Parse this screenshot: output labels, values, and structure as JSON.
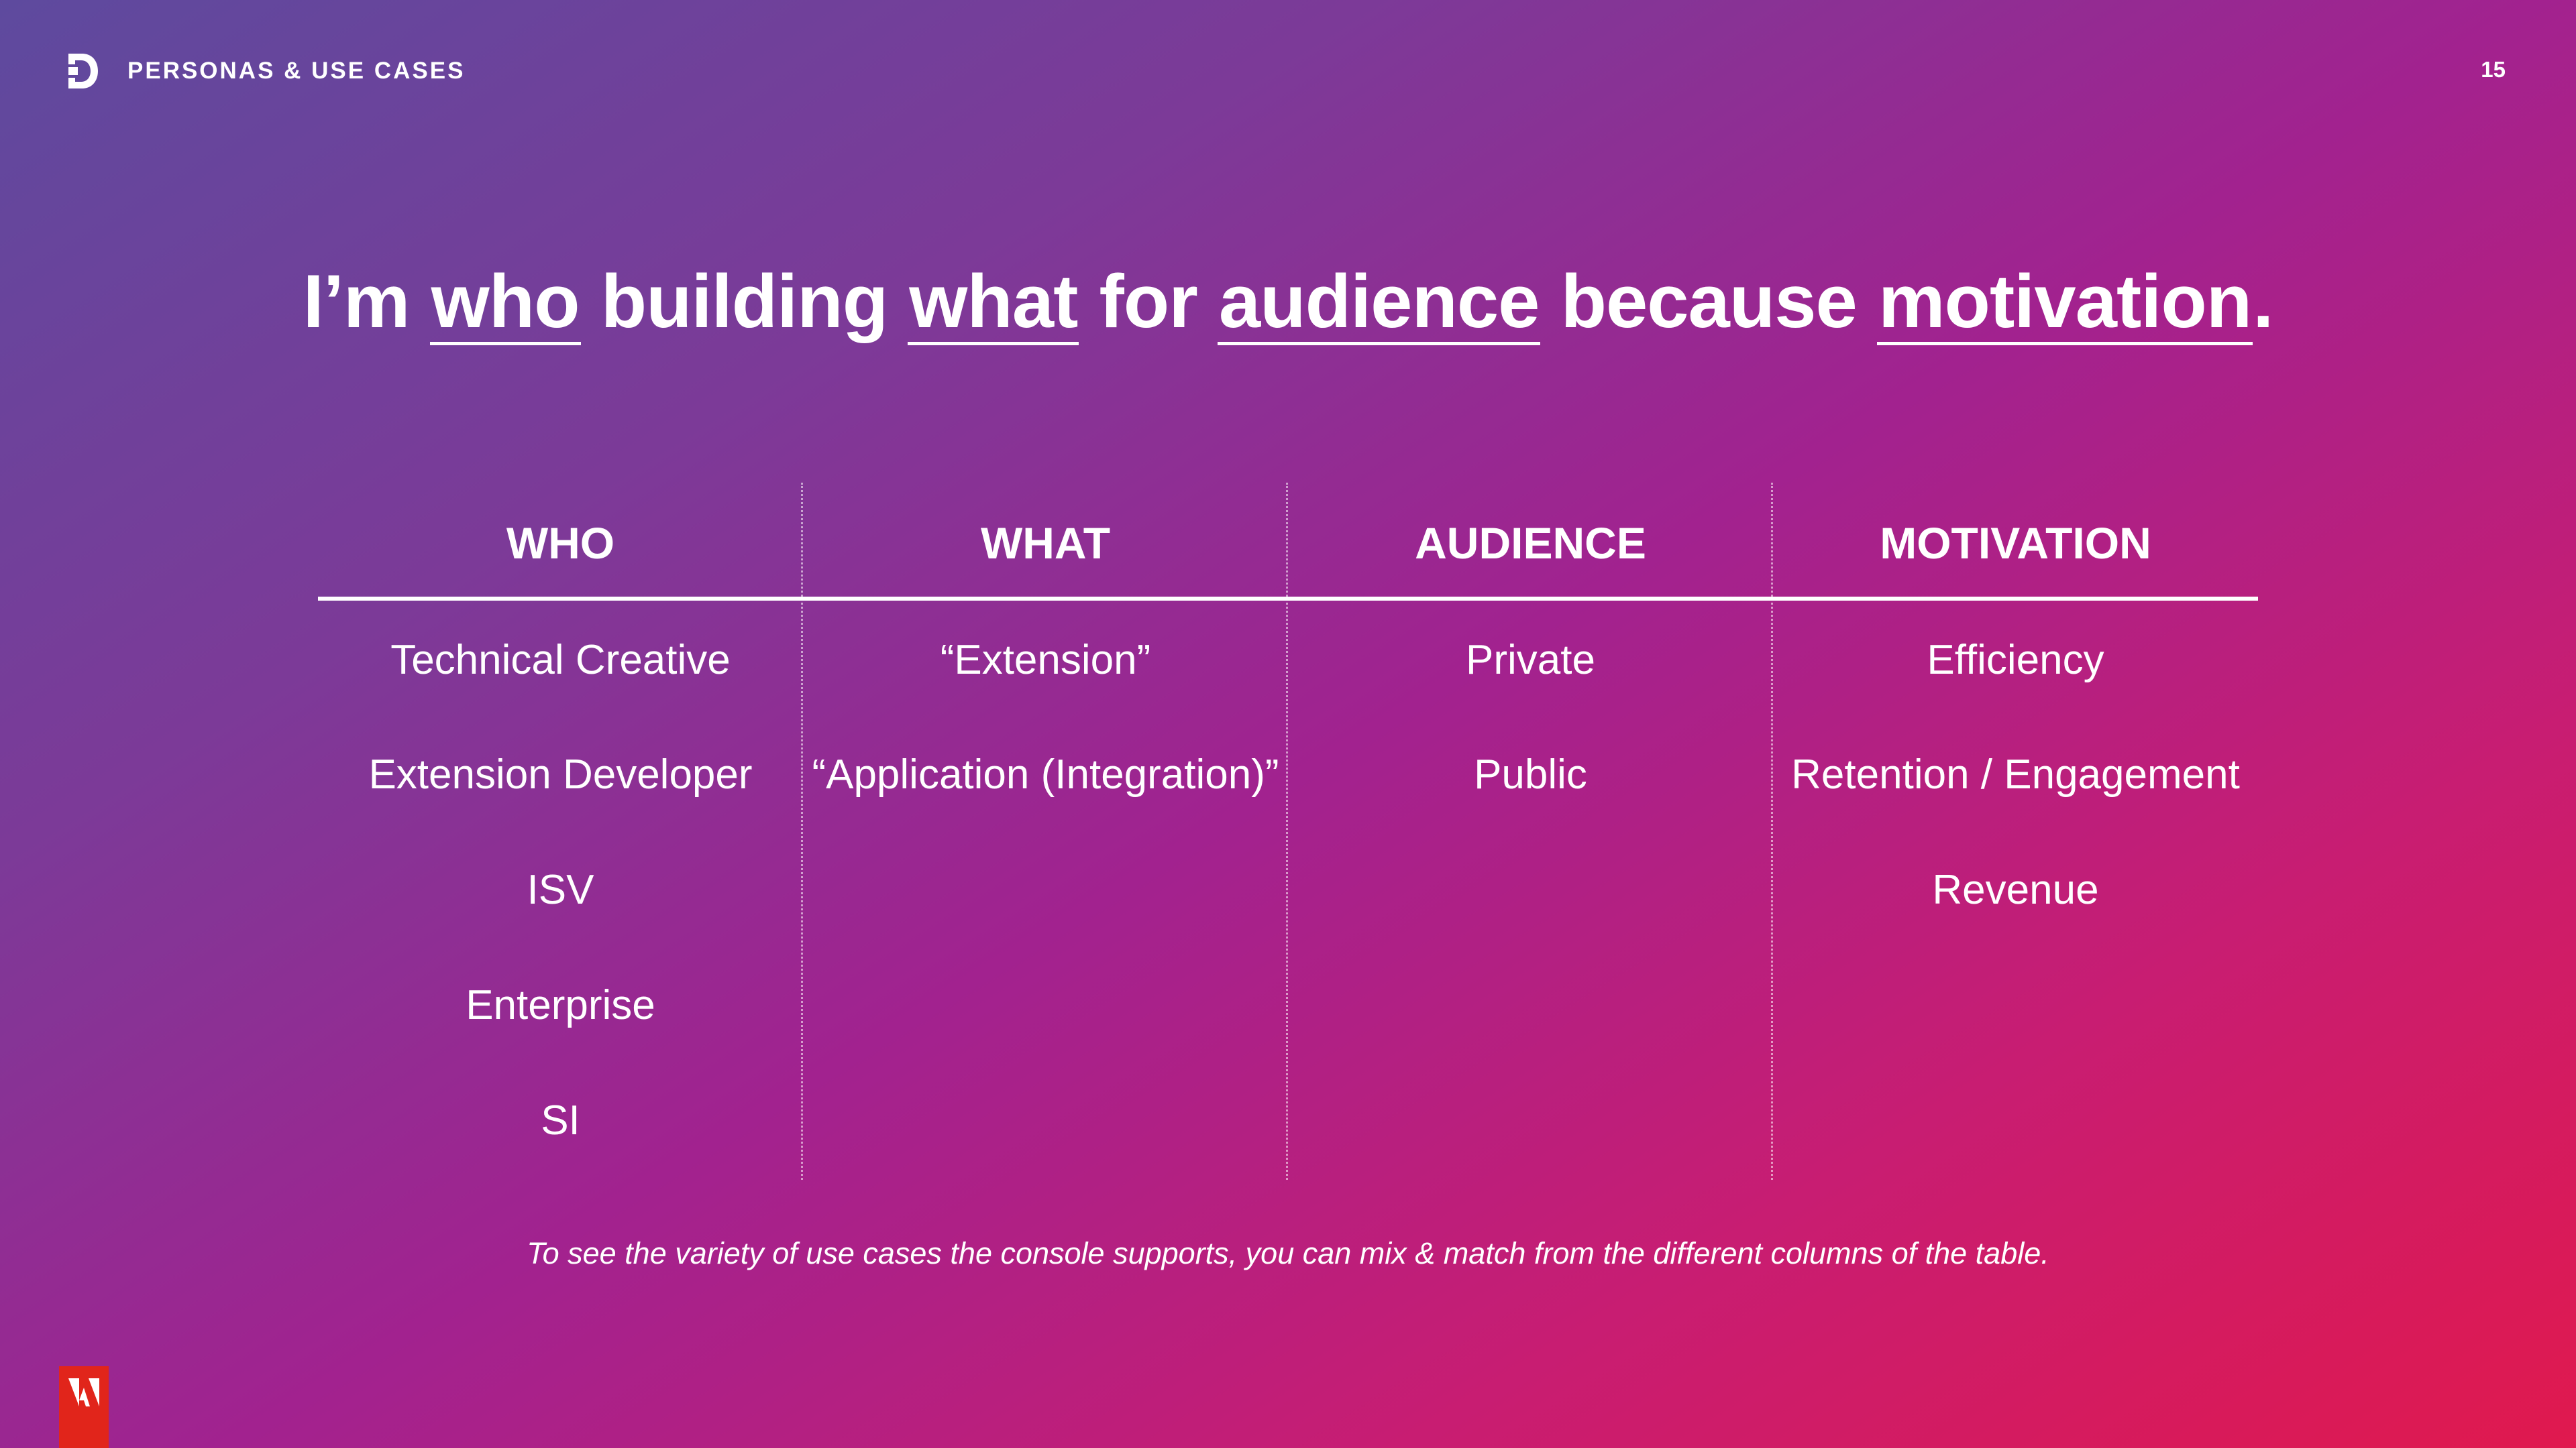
{
  "header": {
    "section_label": "PERSONAS & USE CASES",
    "page_number": "15",
    "brand_icon": "d-logo-icon"
  },
  "headline": {
    "w1": "I’m",
    "who": "who",
    "w2": "building",
    "what": "what",
    "w3": "for",
    "audience": "audience",
    "w4": "because",
    "motivation": "motivation",
    "end": "."
  },
  "table": {
    "columns": [
      {
        "header": "WHO",
        "items": [
          "Technical Creative",
          "Extension Developer",
          "ISV",
          "Enterprise",
          "SI"
        ]
      },
      {
        "header": "WHAT",
        "items": [
          "“Extension”",
          "“Application (Integration)”"
        ]
      },
      {
        "header": "AUDIENCE",
        "items": [
          "Private",
          "Public"
        ]
      },
      {
        "header": "MOTIVATION",
        "items": [
          "Efficiency",
          "Retention / Engagement",
          "Revenue"
        ]
      }
    ]
  },
  "footnote": "To see the variety of use cases the console supports, you can mix & match from the different columns of the table.",
  "footer": {
    "logo_icon": "adobe-logo-icon"
  },
  "colors": {
    "gradient_start": "#5e4a9e",
    "gradient_mid": "#a2228f",
    "gradient_end": "#e0194e",
    "adobe_red": "#e1251b",
    "text": "#ffffff"
  }
}
